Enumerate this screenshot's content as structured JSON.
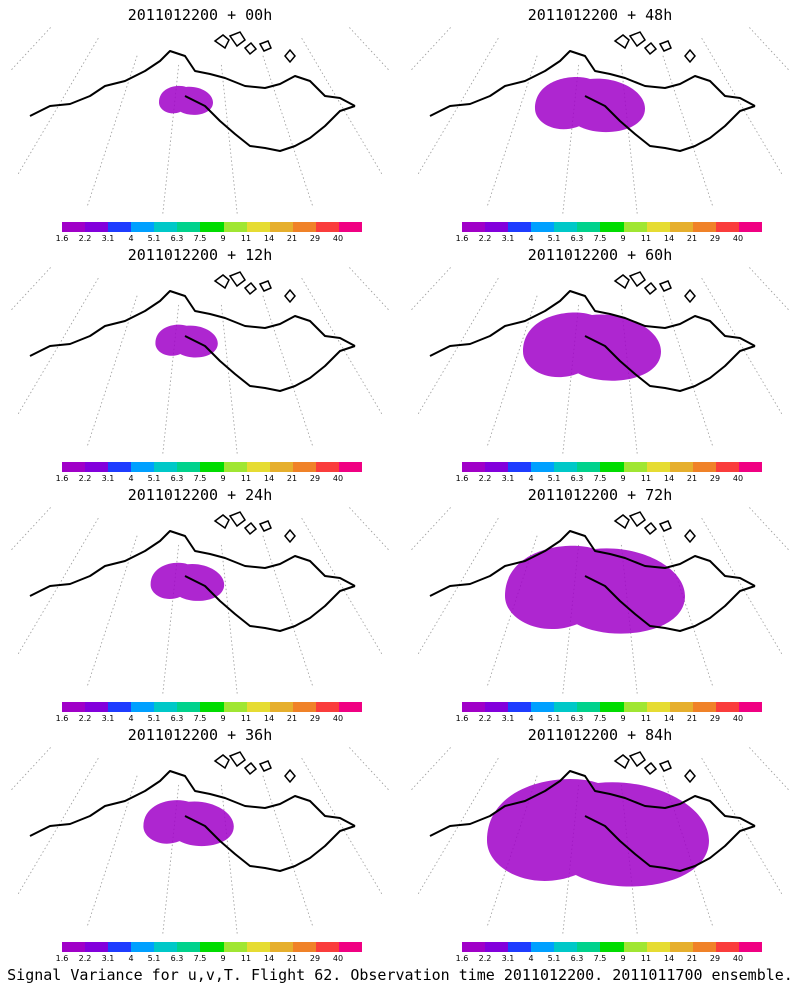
{
  "panels": [
    {
      "title": "2011012200  + 00h",
      "lead": "00h",
      "coverage": 0.05
    },
    {
      "title": "2011012200  + 48h",
      "lead": "48h",
      "coverage": 0.25
    },
    {
      "title": "2011012200  + 12h",
      "lead": "12h",
      "coverage": 0.08
    },
    {
      "title": "2011012200  + 60h",
      "lead": "60h",
      "coverage": 0.35
    },
    {
      "title": "2011012200  + 24h",
      "lead": "24h",
      "coverage": 0.12
    },
    {
      "title": "2011012200  + 72h",
      "lead": "72h",
      "coverage": 0.5
    },
    {
      "title": "2011012200  + 36h",
      "lead": "36h",
      "coverage": 0.18
    },
    {
      "title": "2011012200  + 84h",
      "lead": "84h",
      "coverage": 0.65
    }
  ],
  "colorbar": {
    "labels": [
      "1.6",
      "2.2",
      "3.1",
      "4",
      "5.1",
      "6.3",
      "7.5",
      "9",
      "11",
      "14",
      "21",
      "29",
      "40"
    ],
    "colors": [
      "#a000c8",
      "#8200dc",
      "#1e3cff",
      "#00a0ff",
      "#00c8c8",
      "#00d28c",
      "#00dc00",
      "#a0e632",
      "#e6dc32",
      "#e6af2d",
      "#f08228",
      "#fa3c3c",
      "#f00082"
    ]
  },
  "footer": "Signal Variance for u,v,T. Flight 62. Observation time 2011012200. 2011011700 ensemble."
}
